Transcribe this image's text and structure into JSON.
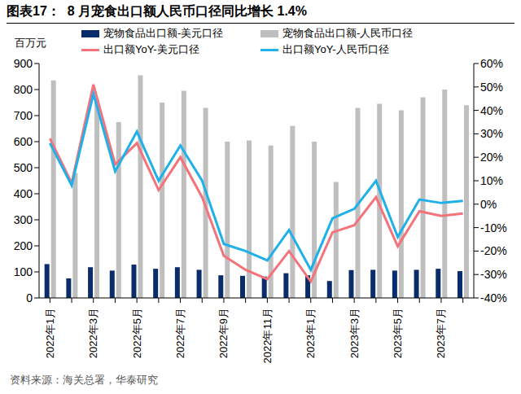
{
  "chart_data": {
    "type": "bar",
    "title": "图表17：  8 月宠食出口额人民币口径同比增长 1.4%",
    "y_label": "百万元",
    "source": "资料来源：海关总署，华泰研究",
    "categories": [
      "2022年1月",
      null,
      "2022年3月",
      null,
      "2022年5月",
      null,
      "2022年7月",
      null,
      "2022年9月",
      null,
      "2022年11月",
      null,
      "2023年1月",
      null,
      "2023年3月",
      null,
      "2023年5月",
      null,
      "2023年7月",
      null
    ],
    "series": [
      {
        "name": "宠物食品出口额-美元口径",
        "type": "bar",
        "color": "#0B2C6B",
        "values": [
          130,
          75,
          118,
          105,
          128,
          112,
          118,
          108,
          87,
          85,
          82,
          95,
          87,
          65,
          107,
          108,
          105,
          108,
          112,
          103
        ]
      },
      {
        "name": "宠物食品出口额-人民币口径",
        "type": "bar",
        "color": "#BFBFBF",
        "values": [
          835,
          480,
          760,
          675,
          855,
          750,
          795,
          730,
          600,
          605,
          585,
          660,
          600,
          445,
          730,
          745,
          720,
          770,
          800,
          740
        ]
      },
      {
        "name": "出口额YoY-美元口径",
        "type": "line",
        "axis": "y2",
        "color": "#F4727A",
        "marker": "none",
        "line_style": "solid",
        "values": [
          28,
          9,
          51,
          17,
          26,
          6,
          20,
          3,
          -22,
          -28,
          -32,
          -20,
          -33,
          -12,
          -9,
          3,
          -18,
          -3,
          -5,
          -4
        ]
      },
      {
        "name": "出口额YoY-人民币口径",
        "type": "line",
        "axis": "y2",
        "color": "#1FB0EA",
        "marker": "none",
        "line_style": "solid",
        "values": [
          26,
          8,
          47,
          14,
          31,
          10,
          25,
          10,
          -17,
          -20,
          -24,
          -11,
          -28,
          -6,
          -2,
          10,
          -14,
          2,
          0.5,
          1.4
        ]
      }
    ],
    "ylim": [
      0,
      900
    ],
    "yticks": [
      0,
      100,
      200,
      300,
      400,
      500,
      600,
      700,
      800,
      900
    ],
    "y2lim": [
      -40,
      60
    ],
    "y2ticks": [
      {
        "value": -40,
        "label": "-40%"
      },
      {
        "value": -30,
        "label": "-30%"
      },
      {
        "value": -20,
        "label": "-20%"
      },
      {
        "value": -10,
        "label": "-10%"
      },
      {
        "value": 0,
        "label": "0%"
      },
      {
        "value": 10,
        "label": "10%"
      },
      {
        "value": 20,
        "label": "20%"
      },
      {
        "value": 30,
        "label": "30%"
      },
      {
        "value": 40,
        "label": "40%"
      },
      {
        "value": 50,
        "label": "50%"
      },
      {
        "value": 60,
        "label": "60%"
      }
    ],
    "grid": false
  }
}
